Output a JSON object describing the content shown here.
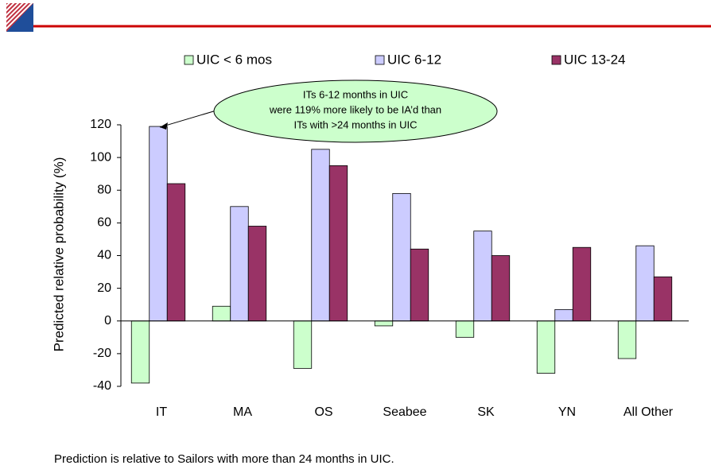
{
  "chart_data": {
    "type": "bar",
    "categories": [
      "IT",
      "MA",
      "OS",
      "Seabee",
      "SK",
      "YN",
      "All Other"
    ],
    "series": [
      {
        "name": "UIC < 6 mos",
        "color": "#ccffcc",
        "values": [
          -38,
          9,
          -29,
          -3,
          -10,
          -32,
          -23
        ]
      },
      {
        "name": "UIC  6-12",
        "color": "#ccccff",
        "values": [
          119,
          70,
          105,
          78,
          55,
          7,
          46
        ]
      },
      {
        "name": "UIC 13-24",
        "color": "#993366",
        "values": [
          84,
          58,
          95,
          44,
          40,
          45,
          27
        ]
      }
    ],
    "ylabel": "Predicted relative probability (%)",
    "ylim": [
      -40,
      120
    ],
    "yticks": [
      -40,
      -20,
      0,
      20,
      40,
      60,
      80,
      100,
      120
    ],
    "annotation": [
      "ITs 6-12 months in UIC",
      "were 119% more likely to be IA’d than",
      "ITs with >24 months in UIC"
    ],
    "legend": "top"
  },
  "footnote": "Prediction is relative to Sailors with more than 24 months in UIC."
}
